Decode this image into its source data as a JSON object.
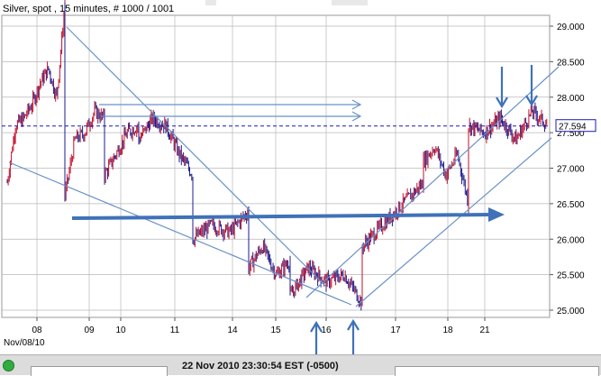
{
  "chart_title": "Silver, spot , 15 minutes, # 1000 / 1001",
  "status": {
    "timestamp": "22 Nov 2010 23:30:54  EST (-0500)"
  },
  "colors": {
    "up_bar": "#c0102a",
    "down_bar": "#1c1c8c",
    "trendline": "#6a92c8",
    "support_arrow": "#3f72b8",
    "current_line": "#1a1ab4",
    "grid": "#b8b8b8"
  },
  "chart_data": {
    "type": "line",
    "instrument": "Silver, spot",
    "interval": "15 minutes",
    "xlabel": "",
    "ylabel": "",
    "x_ticks": [
      "08",
      "09",
      "10",
      "11",
      "14",
      "15",
      "16",
      "17",
      "18",
      "21"
    ],
    "x_date_label": "Nov/08/10",
    "y_ticks": [
      25.0,
      25.5,
      26.0,
      26.5,
      27.0,
      27.5,
      28.0,
      28.5,
      29.0
    ],
    "y_tick_labels": [
      "25.000",
      "25.500",
      "26.000",
      "26.500",
      "27.000",
      "27.500",
      "28.000",
      "28.500",
      "29.000"
    ],
    "ylim": [
      24.85,
      29.45
    ],
    "current_price": 27.594,
    "current_price_label": "27.594",
    "series": [
      {
        "x": [
          "08",
          "08",
          "08",
          "08",
          "08",
          "08",
          "08",
          "08",
          "09",
          "09",
          "09",
          "09",
          "09",
          "10",
          "10",
          "10",
          "10",
          "11",
          "11",
          "11",
          "11",
          "11",
          "14",
          "14",
          "14",
          "14",
          "15",
          "15",
          "15",
          "15",
          "16",
          "16",
          "16",
          "16",
          "16",
          "17",
          "17",
          "17",
          "17",
          "18",
          "18",
          "18",
          "18",
          "18",
          "21",
          "21",
          "21",
          "21",
          "21",
          "21"
        ],
        "values": [
          26.8,
          27.6,
          27.7,
          27.9,
          28.2,
          28.4,
          28.0,
          29.3,
          26.6,
          27.4,
          27.5,
          27.8,
          27.7,
          26.9,
          27.2,
          27.5,
          27.6,
          27.4,
          27.7,
          27.6,
          27.2,
          26.9,
          26.0,
          26.2,
          26.1,
          26.4,
          25.6,
          25.9,
          25.5,
          25.7,
          25.2,
          25.6,
          25.4,
          25.5,
          25.1,
          25.9,
          26.2,
          26.5,
          26.8,
          27.1,
          27.3,
          26.9,
          27.2,
          26.5,
          27.6,
          27.5,
          27.7,
          27.4,
          27.8,
          27.6
        ]
      }
    ],
    "annotations": {
      "trendlines": 5,
      "horizontal_arrows": 3,
      "vertical_arrows": 4
    }
  }
}
